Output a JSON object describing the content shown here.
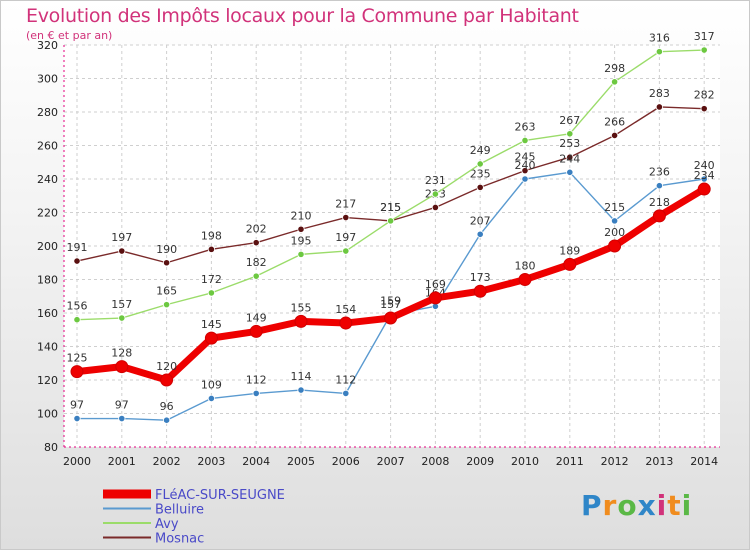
{
  "title": "Evolution des Impôts locaux pour la Commune par Habitant",
  "subtitle": "(en € et par an)",
  "logo": {
    "text": "Proxiti",
    "letter_colors": [
      "#2f86c8",
      "#f08c1e",
      "#5ab846",
      "#2f86c8",
      "#d1327a",
      "#f08c1e",
      "#5ab846"
    ]
  },
  "chart_data": {
    "type": "line",
    "title": "Evolution des Impôts locaux pour la Commune par Habitant",
    "subtitle": "(en € et par an)",
    "xlabel": "",
    "ylabel": "",
    "x": [
      "2000",
      "2001",
      "2002",
      "2003",
      "2004",
      "2005",
      "2006",
      "2007",
      "2008",
      "2009",
      "2010",
      "2011",
      "2012",
      "2013",
      "2014"
    ],
    "ylim": [
      80,
      320
    ],
    "yticks": [
      80,
      100,
      120,
      140,
      160,
      180,
      200,
      220,
      240,
      260,
      280,
      300,
      320
    ],
    "grid": true,
    "legend_position": "bottom-left",
    "series": [
      {
        "name": "Mosnac",
        "color": "#7a2a2a",
        "marker": "#5a1010",
        "values": [
          191,
          197,
          190,
          198,
          202,
          210,
          217,
          215,
          223,
          235,
          245,
          253,
          266,
          283,
          282
        ]
      },
      {
        "name": "Avy",
        "color": "#9bdc6a",
        "marker": "#6cc840",
        "values": [
          156,
          157,
          165,
          172,
          182,
          195,
          197,
          215,
          231,
          249,
          263,
          267,
          298,
          316,
          317
        ]
      },
      {
        "name": "Belluire",
        "color": "#5a9ad0",
        "marker": "#3a7fc0",
        "values": [
          97,
          97,
          96,
          109,
          112,
          114,
          112,
          159,
          164,
          207,
          240,
          244,
          215,
          236,
          240
        ]
      },
      {
        "name": "FLéAC-SUR-SEUGNE",
        "color": "#ee0000",
        "marker": "#ee0000",
        "values": [
          125,
          128,
          120,
          145,
          149,
          155,
          154,
          157,
          169,
          173,
          180,
          189,
          200,
          218,
          234
        ]
      }
    ],
    "legend_order": [
      "FLéAC-SUR-SEUGNE",
      "Belluire",
      "Avy",
      "Mosnac"
    ]
  }
}
